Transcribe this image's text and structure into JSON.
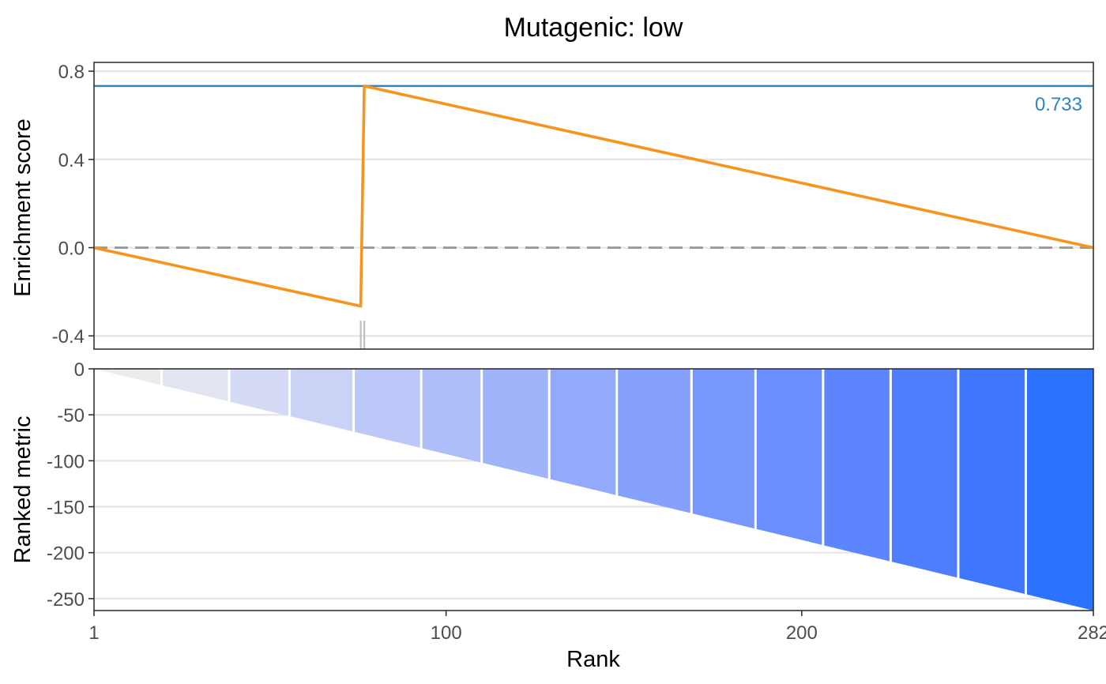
{
  "chart_data": [
    {
      "type": "line",
      "title": "Mutagenic: low",
      "ylabel": "Enrichment score",
      "ylim": [
        -0.46,
        0.84
      ],
      "yticks": [
        -0.4,
        0.0,
        0.4,
        0.8
      ],
      "ytick_labels": [
        "-0.4",
        "0.0",
        "0.4",
        "0.8"
      ],
      "grid": true,
      "series": [
        {
          "x": [
            1,
            76,
            77,
            282
          ],
          "y": [
            0.0,
            -0.265,
            0.733,
            0.0
          ],
          "color": "#F7941D"
        }
      ],
      "max_es": 0.733,
      "max_es_label": "0.733",
      "max_es_color": "#3182BD",
      "zero_line": "dashed",
      "hit_ranks": [
        76,
        77
      ]
    },
    {
      "type": "area",
      "xlabel": "Rank",
      "ylabel": "Ranked metric",
      "xlim": [
        1,
        282
      ],
      "xticks": [
        1,
        100,
        200,
        282
      ],
      "xtick_labels": [
        "1",
        "100",
        "200",
        "282"
      ],
      "ylim": [
        -263,
        0
      ],
      "yticks": [
        0,
        -50,
        -100,
        -150,
        -200,
        -250
      ],
      "ytick_labels": [
        "0",
        "-50",
        "-100",
        "-150",
        "-200",
        "-250"
      ],
      "grid": true,
      "metric_start": 0,
      "metric_end": -263,
      "band_boundaries": [
        1,
        20,
        39,
        56,
        74,
        93,
        110,
        129,
        148,
        169,
        187,
        206,
        225,
        244,
        263,
        282
      ],
      "band_colors": [
        "#ECECEF",
        "#E2E4F2",
        "#D6DBF5",
        "#CAD3F6",
        "#BCC8F8",
        "#AEBEF9",
        "#A0B4FA",
        "#93AAFB",
        "#86A1FC",
        "#7897FD",
        "#6A8EFD",
        "#5C85FE",
        "#4E7DFE",
        "#3F76FE",
        "#2B72FF"
      ]
    }
  ]
}
